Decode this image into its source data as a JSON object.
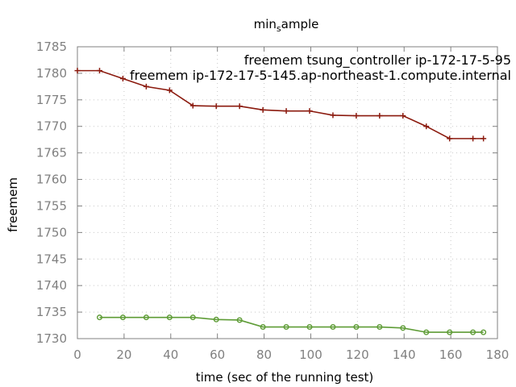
{
  "chart_data": {
    "type": "line",
    "title": "min_sample",
    "xlabel": "time (sec of the running test)",
    "ylabel": "freemem",
    "xlim": [
      0,
      180
    ],
    "ylim": [
      1730,
      1785
    ],
    "x_ticks": [
      0,
      20,
      40,
      60,
      80,
      100,
      120,
      140,
      160,
      180
    ],
    "y_ticks": [
      1730,
      1735,
      1740,
      1745,
      1750,
      1755,
      1760,
      1765,
      1770,
      1775,
      1780,
      1785
    ],
    "grid": true,
    "legend_position": "top-right",
    "series": [
      {
        "name": "freemem_tsung_controller_ip-172-17-5-95",
        "legend_label": "freemem tsung_controller ip-172-17-5-95",
        "color": "#8b1a0e",
        "marker": "plus",
        "x": [
          0,
          9.5,
          19.5,
          29.5,
          39.5,
          49.5,
          59.5,
          69.5,
          79.5,
          89.5,
          99.5,
          109.5,
          119.5,
          129.5,
          139.5,
          149.5,
          159.5,
          169.5,
          174
        ],
        "y": [
          1780.5,
          1780.5,
          1779.0,
          1777.5,
          1776.8,
          1773.9,
          1773.8,
          1773.8,
          1773.1,
          1772.9,
          1772.9,
          1772.1,
          1772.0,
          1772.0,
          1772.0,
          1770.0,
          1767.7,
          1767.7,
          1767.7
        ]
      },
      {
        "name": "freemem_ip-172-17-5-145.ap-northeast-1.compute.internal",
        "legend_label": "freemem ip-172-17-5-145.ap-northeast-1.compute.internal",
        "color": "#5e9c36",
        "marker": "circle",
        "x": [
          9.5,
          19.5,
          29.5,
          39.5,
          49.5,
          59.5,
          69.5,
          79.5,
          89.5,
          99.5,
          109.5,
          119.5,
          129.5,
          139.5,
          149.5,
          159.5,
          169.5,
          174
        ],
        "y": [
          1734.0,
          1734.0,
          1734.0,
          1734.0,
          1734.0,
          1733.6,
          1733.5,
          1732.2,
          1732.2,
          1732.2,
          1732.2,
          1732.2,
          1732.2,
          1732.0,
          1731.2,
          1731.2,
          1731.2,
          1731.2
        ]
      }
    ]
  }
}
